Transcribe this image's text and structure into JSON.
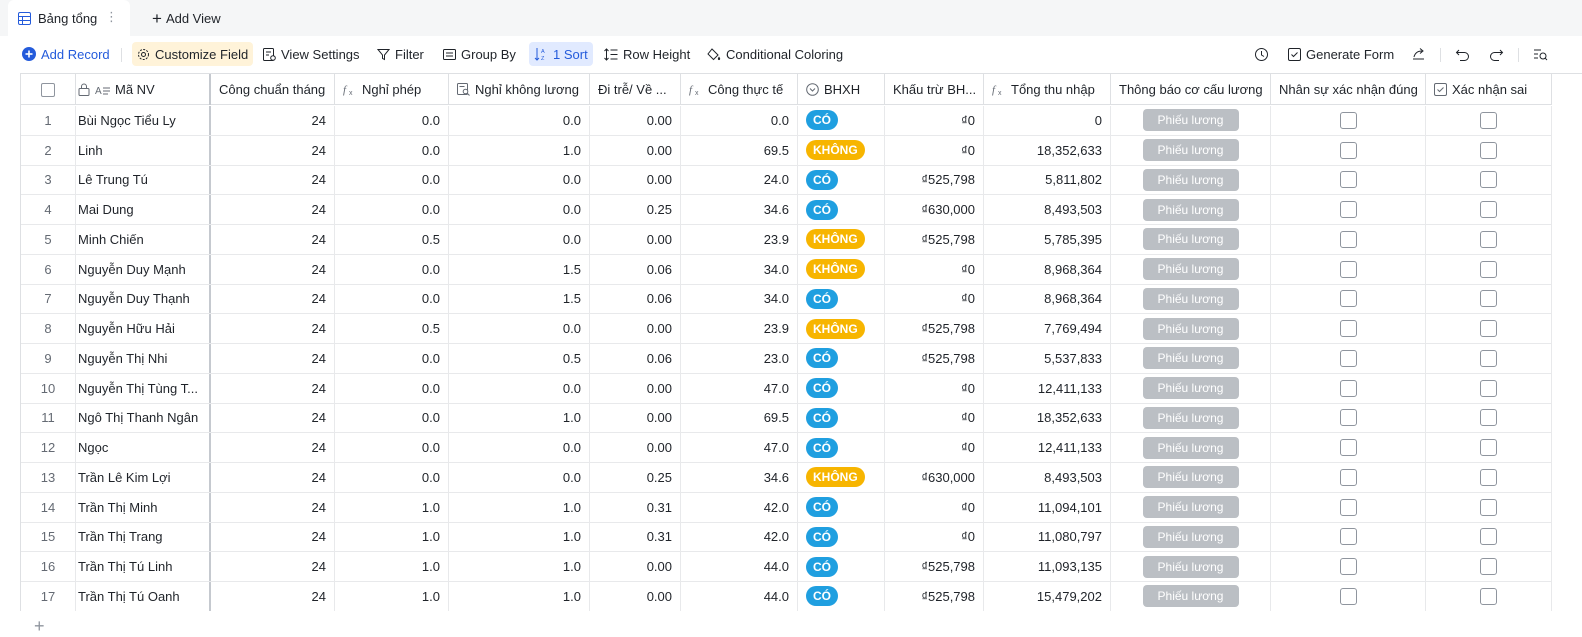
{
  "tabs": {
    "active_label": "Bảng tổng",
    "add_view_label": "Add View"
  },
  "toolbar": {
    "add_record": "Add Record",
    "customize_field": "Customize Field",
    "view_settings": "View Settings",
    "filter": "Filter",
    "group_by": "Group By",
    "sort": "1 Sort",
    "row_height": "Row Height",
    "conditional_coloring": "Conditional Coloring",
    "generate_form": "Generate Form"
  },
  "columns": [
    "Mã NV",
    "Công chuẩn tháng",
    "Nghỉ phép",
    "Nghỉ không lương",
    "Đi trễ/ Về ...",
    "Công thực tế",
    "BHXH",
    "Khấu trừ BH...",
    "Tổng thu nhập",
    "Thông báo cơ cấu lương",
    "Nhân sự xác nhận đúng",
    "Xác nhận sai"
  ],
  "button_label": "Phiếu lương",
  "rows": [
    {
      "n": "1",
      "name": "Bùi Ngọc Tiểu Ly",
      "ccm": "24",
      "np": "0.0",
      "nkl": "0.0",
      "dt": "0.00",
      "ctt": "0.0",
      "bhxh": "CÓ",
      "ktbh": "₫0",
      "ttn": "0"
    },
    {
      "n": "2",
      "name": "Linh",
      "ccm": "24",
      "np": "0.0",
      "nkl": "1.0",
      "dt": "0.00",
      "ctt": "69.5",
      "bhxh": "KHÔNG",
      "ktbh": "₫0",
      "ttn": "18,352,633"
    },
    {
      "n": "3",
      "name": "Lê Trung Tú",
      "ccm": "24",
      "np": "0.0",
      "nkl": "0.0",
      "dt": "0.00",
      "ctt": "24.0",
      "bhxh": "CÓ",
      "ktbh": "₫525,798",
      "ttn": "5,811,802"
    },
    {
      "n": "4",
      "name": "Mai Dung",
      "ccm": "24",
      "np": "0.0",
      "nkl": "0.0",
      "dt": "0.25",
      "ctt": "34.6",
      "bhxh": "CÓ",
      "ktbh": "₫630,000",
      "ttn": "8,493,503"
    },
    {
      "n": "5",
      "name": "Minh Chiến",
      "ccm": "24",
      "np": "0.5",
      "nkl": "0.0",
      "dt": "0.00",
      "ctt": "23.9",
      "bhxh": "KHÔNG",
      "ktbh": "₫525,798",
      "ttn": "5,785,395"
    },
    {
      "n": "6",
      "name": "Nguyễn Duy Mạnh",
      "ccm": "24",
      "np": "0.0",
      "nkl": "1.5",
      "dt": "0.06",
      "ctt": "34.0",
      "bhxh": "KHÔNG",
      "ktbh": "₫0",
      "ttn": "8,968,364"
    },
    {
      "n": "7",
      "name": "Nguyễn Duy Thạnh",
      "ccm": "24",
      "np": "0.0",
      "nkl": "1.5",
      "dt": "0.06",
      "ctt": "34.0",
      "bhxh": "CÓ",
      "ktbh": "₫0",
      "ttn": "8,968,364"
    },
    {
      "n": "8",
      "name": "Nguyễn Hữu Hải",
      "ccm": "24",
      "np": "0.5",
      "nkl": "0.0",
      "dt": "0.00",
      "ctt": "23.9",
      "bhxh": "KHÔNG",
      "ktbh": "₫525,798",
      "ttn": "7,769,494"
    },
    {
      "n": "9",
      "name": "Nguyễn Thị Nhi",
      "ccm": "24",
      "np": "0.0",
      "nkl": "0.5",
      "dt": "0.06",
      "ctt": "23.0",
      "bhxh": "CÓ",
      "ktbh": "₫525,798",
      "ttn": "5,537,833"
    },
    {
      "n": "10",
      "name": "Nguyễn Thị Tùng T...",
      "ccm": "24",
      "np": "0.0",
      "nkl": "0.0",
      "dt": "0.00",
      "ctt": "47.0",
      "bhxh": "CÓ",
      "ktbh": "₫0",
      "ttn": "12,411,133"
    },
    {
      "n": "11",
      "name": "Ngô Thị Thanh Ngân",
      "ccm": "24",
      "np": "0.0",
      "nkl": "1.0",
      "dt": "0.00",
      "ctt": "69.5",
      "bhxh": "CÓ",
      "ktbh": "₫0",
      "ttn": "18,352,633"
    },
    {
      "n": "12",
      "name": "Ngọc",
      "ccm": "24",
      "np": "0.0",
      "nkl": "0.0",
      "dt": "0.00",
      "ctt": "47.0",
      "bhxh": "CÓ",
      "ktbh": "₫0",
      "ttn": "12,411,133"
    },
    {
      "n": "13",
      "name": "Trần Lê Kim Lợi",
      "ccm": "24",
      "np": "0.0",
      "nkl": "0.0",
      "dt": "0.25",
      "ctt": "34.6",
      "bhxh": "KHÔNG",
      "ktbh": "₫630,000",
      "ttn": "8,493,503"
    },
    {
      "n": "14",
      "name": "Trần Thị Minh",
      "ccm": "24",
      "np": "1.0",
      "nkl": "1.0",
      "dt": "0.31",
      "ctt": "42.0",
      "bhxh": "CÓ",
      "ktbh": "₫0",
      "ttn": "11,094,101"
    },
    {
      "n": "15",
      "name": "Trần Thị Trang",
      "ccm": "24",
      "np": "1.0",
      "nkl": "1.0",
      "dt": "0.31",
      "ctt": "42.0",
      "bhxh": "CÓ",
      "ktbh": "₫0",
      "ttn": "11,080,797"
    },
    {
      "n": "16",
      "name": "Trần Thị Tú Linh",
      "ccm": "24",
      "np": "1.0",
      "nkl": "1.0",
      "dt": "0.00",
      "ctt": "44.0",
      "bhxh": "CÓ",
      "ktbh": "₫525,798",
      "ttn": "11,093,135"
    },
    {
      "n": "17",
      "name": "Trần Thị Tú Oanh",
      "ccm": "24",
      "np": "1.0",
      "nkl": "1.0",
      "dt": "0.00",
      "ctt": "44.0",
      "bhxh": "CÓ",
      "ktbh": "₫525,798",
      "ttn": "15,479,202"
    }
  ],
  "colors": {
    "accent_blue": "#245bdb",
    "badge_co": "#1f9fe0",
    "badge_khong": "#f7b500",
    "button_gray": "#bbbfc4"
  },
  "icons": [
    "table-icon",
    "kebab-icon",
    "plus-icon",
    "add-circle-icon",
    "gear-icon",
    "view-settings-icon",
    "filter-icon",
    "group-icon",
    "sort-icon",
    "row-height-icon",
    "paint-bucket-icon",
    "history-icon",
    "form-icon",
    "share-icon",
    "undo-icon",
    "redo-icon",
    "search-icon",
    "lock-icon",
    "text-field-icon",
    "formula-icon",
    "lookup-icon",
    "single-select-icon",
    "checkbox-icon"
  ]
}
